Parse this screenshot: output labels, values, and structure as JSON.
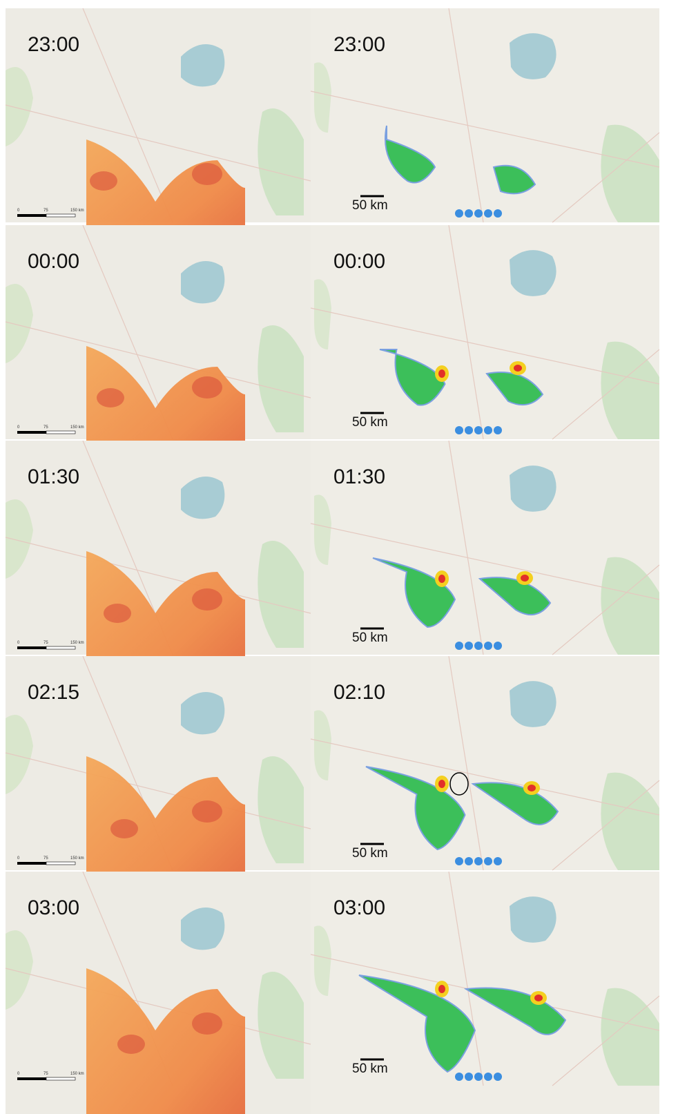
{
  "panels": [
    {
      "left_time": "23:00",
      "right_time": "23:00",
      "distance": "50 km",
      "scale_labels": [
        "0",
        "75",
        "150 km"
      ]
    },
    {
      "left_time": "00:00",
      "right_time": "00:00",
      "distance": "50 km",
      "scale_labels": [
        "0",
        "75",
        "150 km"
      ]
    },
    {
      "left_time": "01:30",
      "right_time": "01:30",
      "distance": "50 km",
      "scale_labels": [
        "0",
        "75",
        "150 km"
      ]
    },
    {
      "left_time": "02:15",
      "right_time": "02:10",
      "distance": "50 km",
      "scale_labels": [
        "0",
        "75",
        "150 km"
      ]
    },
    {
      "left_time": "03:00",
      "right_time": "03:00",
      "distance": "50 km",
      "scale_labels": [
        "0",
        "75",
        "150 km"
      ]
    }
  ]
}
